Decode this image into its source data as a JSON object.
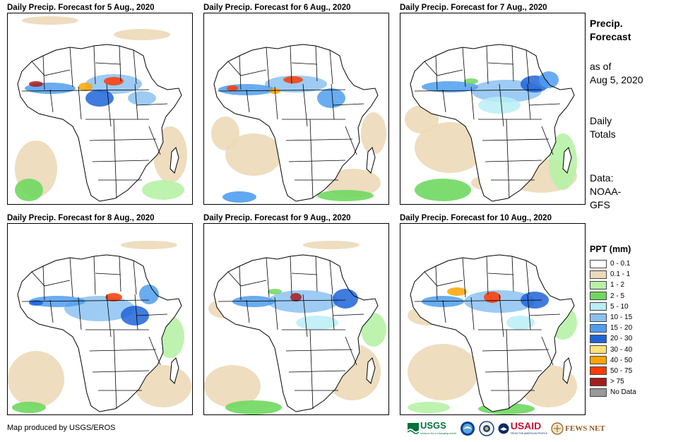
{
  "panels": [
    {
      "title": "Daily Precip. Forecast for 5 Aug., 2020"
    },
    {
      "title": "Daily Precip. Forecast for 6 Aug., 2020"
    },
    {
      "title": "Daily Precip. Forecast for 7 Aug., 2020"
    },
    {
      "title": "Daily Precip. Forecast for 8 Aug., 2020"
    },
    {
      "title": "Daily Precip. Forecast for 9 Aug., 2020"
    },
    {
      "title": "Daily Precip. Forecast for 10 Aug., 2020"
    }
  ],
  "sidebar": {
    "heading_line1": "Precip.",
    "heading_line2": "Forecast",
    "asof_line1": "as of",
    "asof_line2": "Aug 5, 2020",
    "totals_line1": "Daily",
    "totals_line2": "Totals",
    "data_line1": "Data:",
    "data_line2": "NOAA-",
    "data_line3": "GFS"
  },
  "legend": {
    "title": "PPT (mm)",
    "items": [
      {
        "label": "0 - 0.1",
        "color": "#ffffff"
      },
      {
        "label": "0.1 - 1",
        "color": "#ecd9b8"
      },
      {
        "label": "1 - 2",
        "color": "#b6f2a6"
      },
      {
        "label": "2 - 5",
        "color": "#6fd85f"
      },
      {
        "label": "5 - 10",
        "color": "#b8eef6"
      },
      {
        "label": "10 - 15",
        "color": "#8cc2f2"
      },
      {
        "label": "15 - 20",
        "color": "#4f9eef"
      },
      {
        "label": "20 - 30",
        "color": "#1e64d8"
      },
      {
        "label": "30 - 40",
        "color": "#ffe27a"
      },
      {
        "label": "40 - 50",
        "color": "#ffa500"
      },
      {
        "label": "50 - 75",
        "color": "#ff3b00"
      },
      {
        "label": "> 75",
        "color": "#a61c1c"
      },
      {
        "label": "No Data",
        "color": "#999999"
      }
    ]
  },
  "footer": {
    "credit": "Map produced by USGS/EROS"
  },
  "logos": {
    "usgs": "USGS",
    "usgs_tagline": "science for a changing world",
    "usaid": "USAID",
    "usaid_tagline": "FROM THE AMERICAN PEOPLE",
    "fewsnet": "FEWS NET"
  }
}
